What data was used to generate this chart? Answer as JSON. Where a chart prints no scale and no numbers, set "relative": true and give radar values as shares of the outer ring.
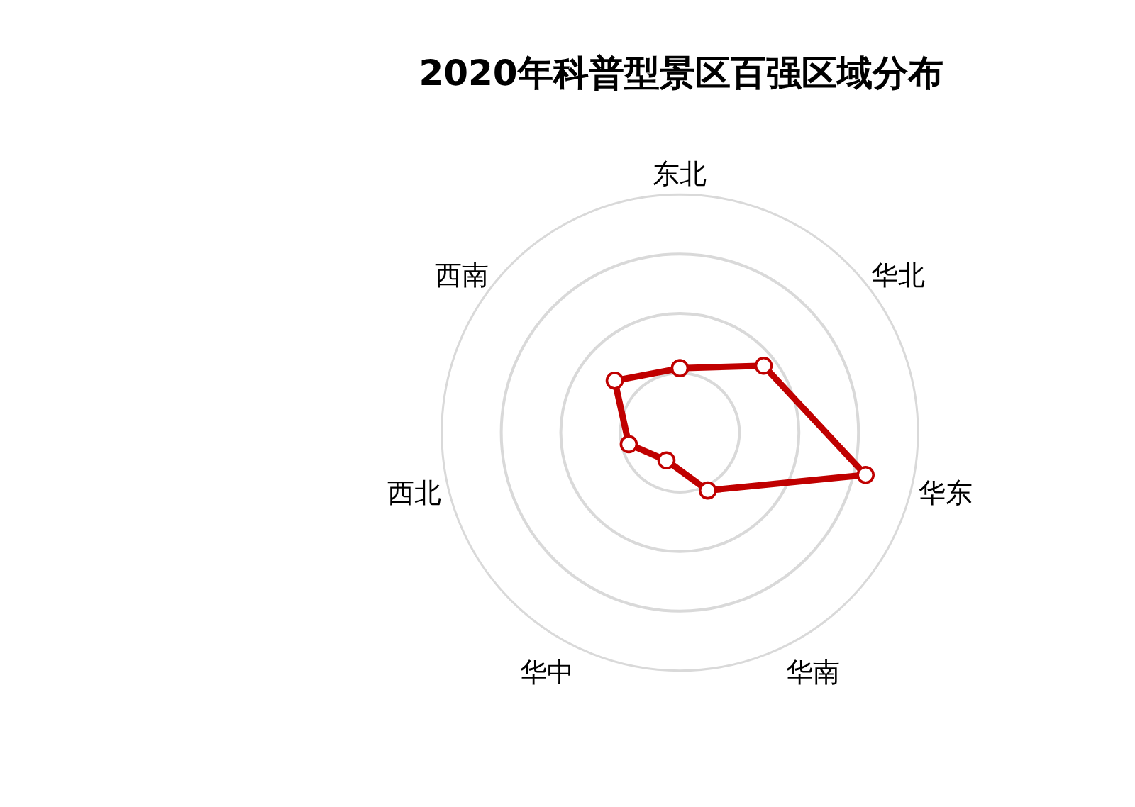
{
  "chart_data": {
    "type": "radar",
    "title": "2020年科普型景区百强区域分布",
    "categories": [
      "东北",
      "华北",
      "华东",
      "华南",
      "华中",
      "西北",
      "西南"
    ],
    "relative": true,
    "series": [
      {
        "color": "#c00000",
        "values": [
          0.27,
          0.45,
          0.8,
          0.27,
          0.13,
          0.22,
          0.35
        ]
      }
    ],
    "marker": "circle",
    "line_style": "solid",
    "grid": true,
    "legend": false
  }
}
